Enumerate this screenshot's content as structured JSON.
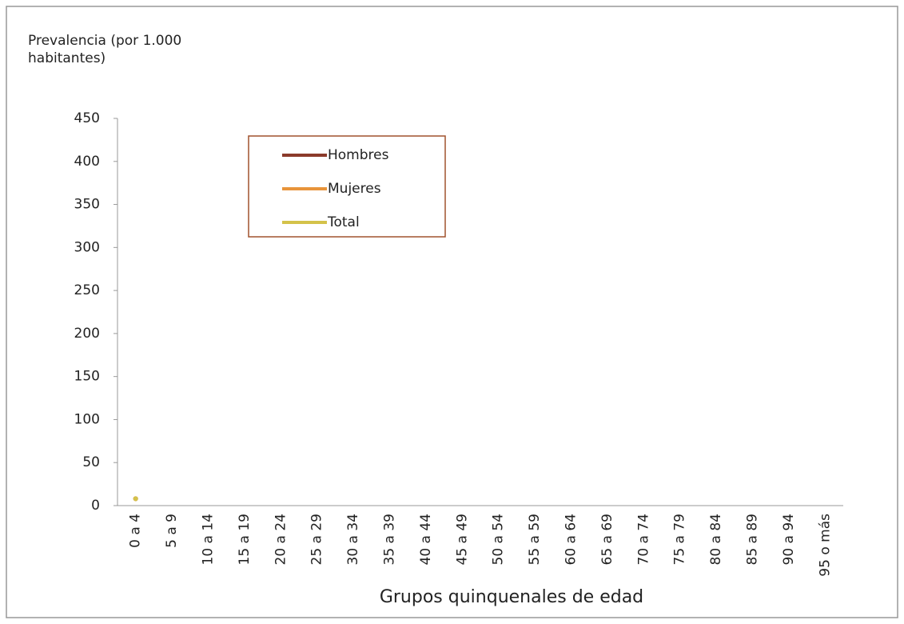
{
  "chart_data": {
    "type": "line",
    "ylabel": "Prevalencia (por 1.000 habitantes)",
    "xlabel": "Grupos quinquenales de edad",
    "categories": [
      "0 a 4",
      "5 a 9",
      "10 a 14",
      "15 a 19",
      "20 a 24",
      "25 a 29",
      "30 a 34",
      "35 a 39",
      "40 a 44",
      "45 a 49",
      "50 a 54",
      "55 a 59",
      "60 a 64",
      "65 a 69",
      "70 a 74",
      "75 a 79",
      "80 a 84",
      "85 a 89",
      "90 a 94",
      "95 o más"
    ],
    "series": [
      {
        "name": "Hombres",
        "color": "#8b3a2a",
        "values": [
          8,
          null,
          null,
          null,
          null,
          null,
          null,
          null,
          null,
          null,
          null,
          null,
          null,
          null,
          null,
          null,
          null,
          null,
          null,
          null
        ]
      },
      {
        "name": "Mujeres",
        "color": "#e8943a",
        "values": [
          8,
          null,
          null,
          null,
          null,
          null,
          null,
          null,
          null,
          null,
          null,
          null,
          null,
          null,
          null,
          null,
          null,
          null,
          null,
          null
        ]
      },
      {
        "name": "Total",
        "color": "#d4c24a",
        "values": [
          8,
          null,
          null,
          null,
          null,
          null,
          null,
          null,
          null,
          null,
          null,
          null,
          null,
          null,
          null,
          null,
          null,
          null,
          null,
          null
        ]
      }
    ],
    "ylim": [
      0,
      450
    ],
    "yticks": [
      0,
      50,
      100,
      150,
      200,
      250,
      300,
      350,
      400,
      450
    ],
    "legend": "top-left",
    "legend_border": "#a0522d"
  }
}
